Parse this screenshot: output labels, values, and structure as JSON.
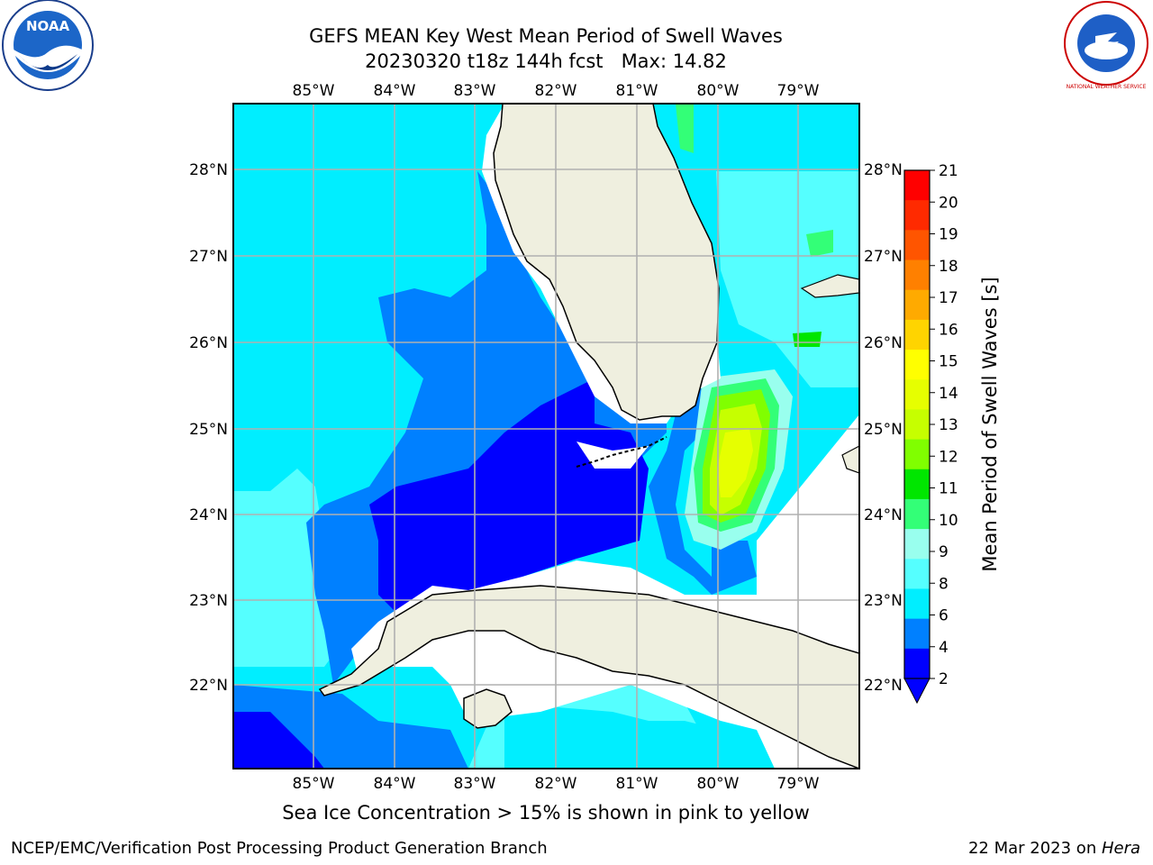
{
  "title": {
    "line1": "GEFS MEAN Key West Mean Period of Swell Waves",
    "line2": "20230320 t18z 144h fcst   Max: 14.82"
  },
  "logos": {
    "noaa_text": "NOAA",
    "nws_text": "NATIONAL WEATHER SERVICE"
  },
  "map": {
    "lon_labels": [
      "85°W",
      "84°W",
      "83°W",
      "82°W",
      "81°W",
      "80°W",
      "79°W"
    ],
    "lat_labels": [
      "28°N",
      "27°N",
      "26°N",
      "25°N",
      "24°N",
      "23°N",
      "22°N"
    ]
  },
  "colorbar": {
    "label": "Mean Period of Swell Waves [s]",
    "ticks": [
      "21",
      "20",
      "19",
      "18",
      "17",
      "16",
      "15",
      "14",
      "13",
      "12",
      "11",
      "10",
      "9",
      "8",
      "6",
      "4",
      "2"
    ],
    "colors": [
      "#ff0000",
      "#ff2a00",
      "#ff5500",
      "#ff8000",
      "#ffaa00",
      "#ffd400",
      "#ffff00",
      "#e6ff00",
      "#c6ff00",
      "#80ff00",
      "#00e600",
      "#33ff77",
      "#99ffee",
      "#55ffff",
      "#00eeff",
      "#0080ff",
      "#0000ff"
    ]
  },
  "note": "Sea Ice Concentration > 15% is shown in pink to yellow",
  "footer": {
    "left": "NCEP/EMC/Verification Post Processing Product Generation Branch",
    "right_date": "22 Mar 2023 on ",
    "right_host": "Hera"
  }
}
